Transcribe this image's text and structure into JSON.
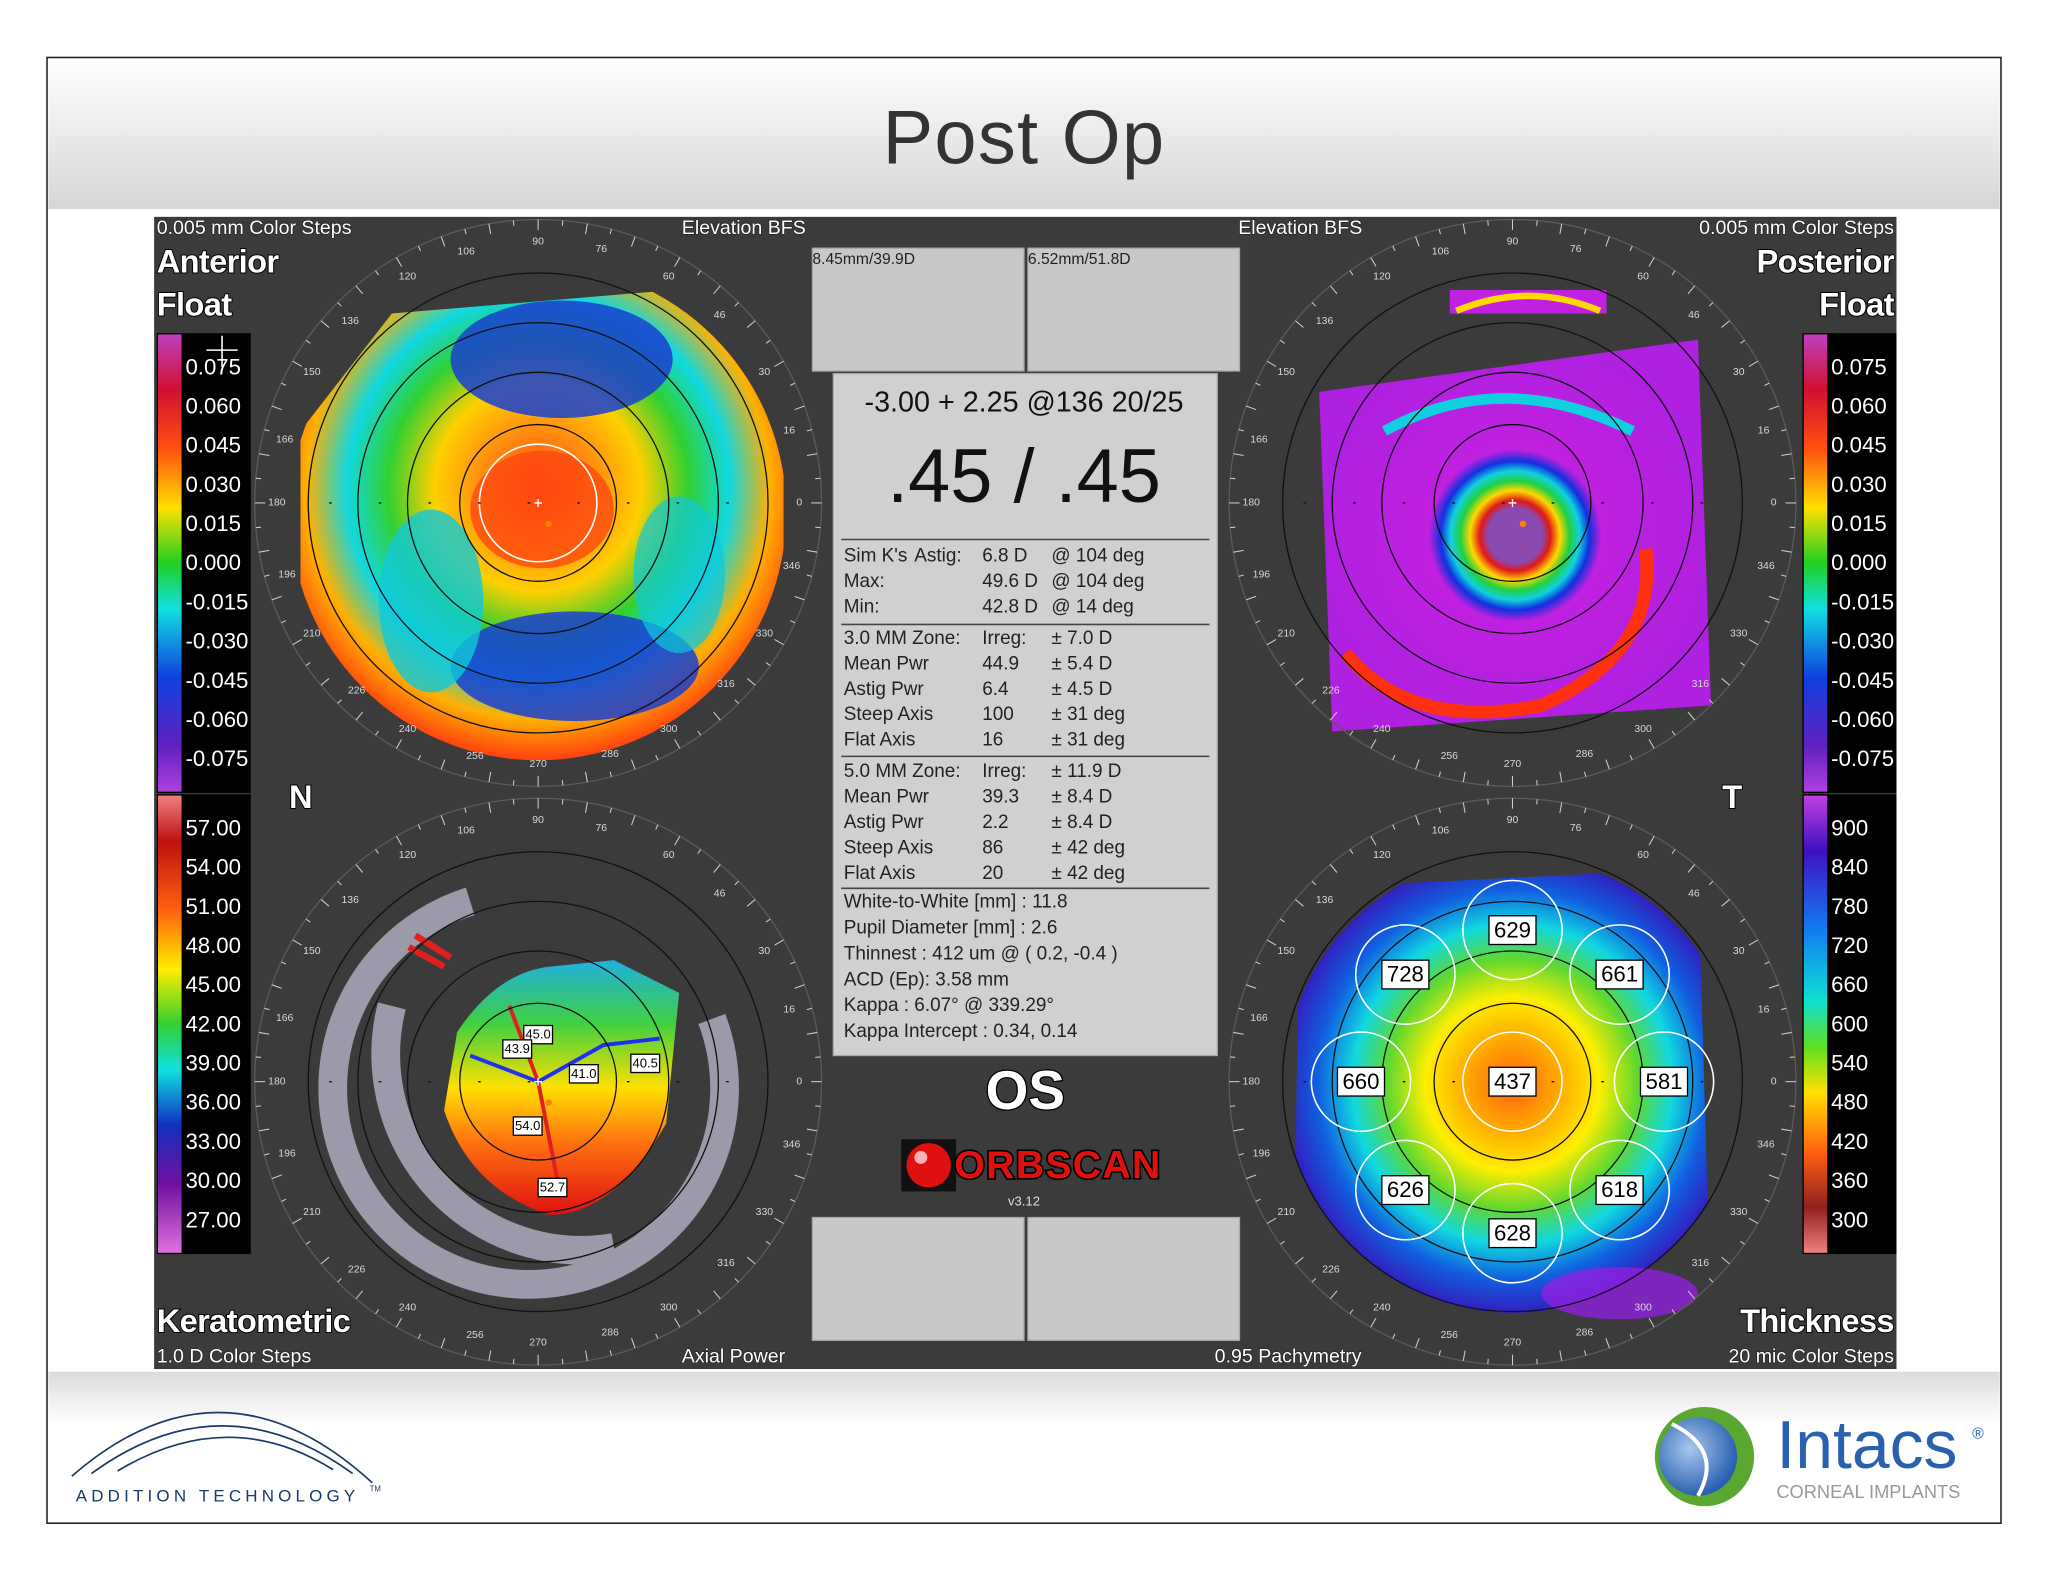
{
  "header": {
    "title": "Post Op"
  },
  "panel": {
    "top_left": {
      "scale_note": "0.005 mm Color Steps",
      "map_type": "Elevation BFS",
      "title_line1": "Anterior",
      "title_line2": "Float"
    },
    "top_right": {
      "map_type": "Elevation BFS",
      "scale_note": "0.005 mm Color Steps",
      "title_line1": "Posterior",
      "title_line2": "Float"
    },
    "bottom_left": {
      "title": "Keratometric",
      "scale_note": "1.0 D Color Steps",
      "map_type": "Axial Power"
    },
    "bottom_right": {
      "map_type": "0.95 Pachymetry",
      "title": "Thickness",
      "scale_note": "20 mic Color Steps"
    },
    "nasal": "N",
    "temporal": "T",
    "dial_labels": [
      0,
      16,
      30,
      46,
      60,
      76,
      90,
      106,
      120,
      136,
      150,
      166,
      180,
      196,
      210,
      226,
      240,
      256,
      270,
      286,
      300,
      316,
      330,
      346
    ],
    "elevation_scale": [
      "0.075",
      "0.060",
      "0.045",
      "0.030",
      "0.015",
      "0.000",
      "-0.015",
      "-0.030",
      "-0.045",
      "-0.060",
      "-0.075"
    ],
    "keratometric_scale": [
      "57.00",
      "54.00",
      "51.00",
      "48.00",
      "45.00",
      "42.00",
      "39.00",
      "36.00",
      "33.00",
      "30.00",
      "27.00"
    ],
    "thickness_scale": [
      "900",
      "840",
      "780",
      "720",
      "660",
      "600",
      "540",
      "480",
      "420",
      "360",
      "300"
    ],
    "radius_boxes": [
      "8.45mm/39.9D",
      "6.52mm/51.8D"
    ],
    "refraction": "-3.00 + 2.25 @136  20/25",
    "acuity": ".45 / .45",
    "sim_k": [
      [
        "Sim K's",
        "Astig:",
        "6.8 D",
        "@ 104 deg"
      ],
      [
        "Max:",
        "49.6 D",
        "@ 104 deg"
      ],
      [
        "Min:",
        "42.8 D",
        "@ 14 deg"
      ]
    ],
    "zone_3mm": [
      [
        "3.0 MM Zone:",
        "Irreg:",
        "± 7.0 D"
      ],
      [
        "Mean Pwr",
        "44.9",
        "± 5.4 D"
      ],
      [
        "Astig Pwr",
        "6.4",
        "± 4.5 D"
      ],
      [
        "Steep Axis",
        "100",
        "± 31 deg"
      ],
      [
        "Flat Axis",
        "16",
        "± 31 deg"
      ]
    ],
    "zone_5mm": [
      [
        "5.0 MM Zone:",
        "Irreg:",
        "± 11.9 D"
      ],
      [
        "Mean Pwr",
        "39.3",
        "± 8.4 D"
      ],
      [
        "Astig Pwr",
        "2.2",
        "± 8.4 D"
      ],
      [
        "Steep Axis",
        "86",
        "± 42 deg"
      ],
      [
        "Flat Axis",
        "20",
        "± 42 deg"
      ]
    ],
    "summary": [
      "White-to-White [mm] : 11.8",
      "Pupil Diameter [mm] :  2.6",
      "Thinnest : 412 um @ ( 0.2, -0.4 )",
      "ACD (Ep): 3.58 mm",
      "Kappa : 6.07° @ 339.29°",
      "Kappa Intercept : 0.34, 0.14"
    ],
    "eye": "OS",
    "brand": "ORBSCAN",
    "version": "v3.12",
    "kerato_labels": [
      "45.0",
      "43.9",
      "41.0",
      "40.5",
      "54.0",
      "52.7"
    ],
    "thickness_labels": [
      "629",
      "728",
      "661",
      "660",
      "437",
      "581",
      "626",
      "618",
      "628"
    ]
  },
  "footer": {
    "left_logo": "ADDITION TECHNOLOGY",
    "left_trademark": "TM",
    "right_logo": "Intacs",
    "right_registered": "®",
    "right_subtitle": "CORNEAL IMPLANTS"
  }
}
